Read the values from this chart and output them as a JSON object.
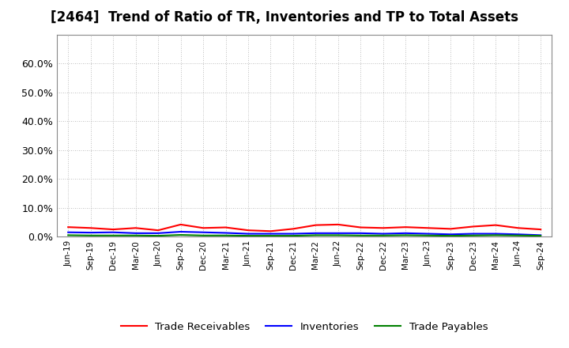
{
  "title": "[2464]  Trend of Ratio of TR, Inventories and TP to Total Assets",
  "ylim": [
    0.0,
    0.7
  ],
  "yticks": [
    0.0,
    0.1,
    0.2,
    0.3,
    0.4,
    0.5,
    0.6
  ],
  "ytick_labels": [
    "0.0%",
    "10.0%",
    "20.0%",
    "30.0%",
    "40.0%",
    "50.0%",
    "60.0%"
  ],
  "x_labels": [
    "Jun-19",
    "Sep-19",
    "Dec-19",
    "Mar-20",
    "Jun-20",
    "Sep-20",
    "Dec-20",
    "Mar-21",
    "Jun-21",
    "Sep-21",
    "Dec-21",
    "Mar-22",
    "Jun-22",
    "Sep-22",
    "Dec-22",
    "Mar-23",
    "Jun-23",
    "Sep-23",
    "Dec-23",
    "Mar-24",
    "Jun-24",
    "Sep-24"
  ],
  "trade_receivables": [
    0.033,
    0.03,
    0.025,
    0.03,
    0.022,
    0.042,
    0.03,
    0.032,
    0.022,
    0.019,
    0.027,
    0.04,
    0.042,
    0.032,
    0.03,
    0.033,
    0.03,
    0.027,
    0.035,
    0.04,
    0.03,
    0.025
  ],
  "inventories": [
    0.015,
    0.014,
    0.015,
    0.012,
    0.012,
    0.017,
    0.015,
    0.013,
    0.01,
    0.01,
    0.01,
    0.012,
    0.012,
    0.012,
    0.01,
    0.012,
    0.01,
    0.008,
    0.01,
    0.01,
    0.008,
    0.005
  ],
  "trade_payables": [
    0.005,
    0.004,
    0.004,
    0.004,
    0.003,
    0.006,
    0.004,
    0.004,
    0.003,
    0.003,
    0.003,
    0.005,
    0.005,
    0.004,
    0.004,
    0.005,
    0.004,
    0.003,
    0.004,
    0.005,
    0.004,
    0.003
  ],
  "tr_color": "#FF0000",
  "inv_color": "#0000FF",
  "tp_color": "#008000",
  "background_color": "#FFFFFF",
  "grid_color": "#AAAAAA",
  "title_fontsize": 12,
  "legend_labels": [
    "Trade Receivables",
    "Inventories",
    "Trade Payables"
  ]
}
